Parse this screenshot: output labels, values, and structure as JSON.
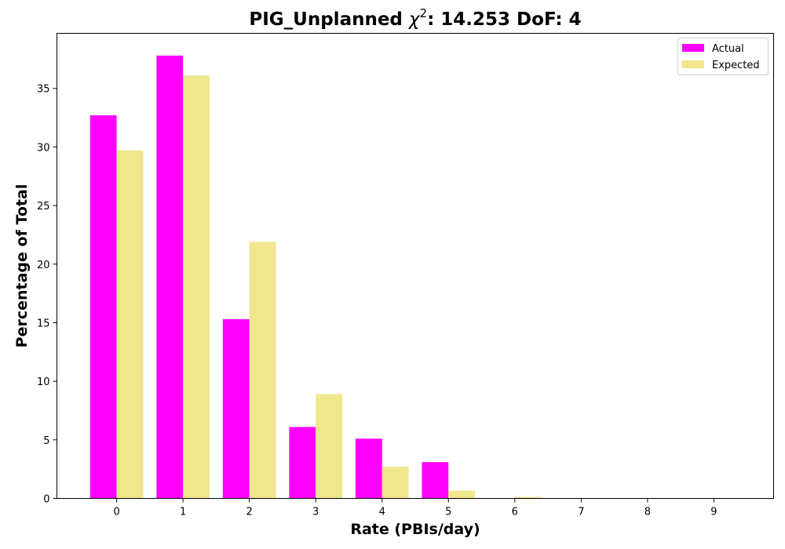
{
  "chart_data": {
    "type": "bar",
    "title": {
      "prefix": "PIG_Unplanned ",
      "symbol": "χ",
      "superscript": "2",
      "suffix": ": 14.253 DoF: 4"
    },
    "xlabel": "Rate (PBIs/day)",
    "ylabel": "Percentage of Total",
    "categories": [
      "0",
      "1",
      "2",
      "3",
      "4",
      "5",
      "6",
      "7",
      "8",
      "9"
    ],
    "series": [
      {
        "name": "Actual",
        "color": "#ff00ff",
        "values": [
          32.7,
          37.8,
          15.3,
          6.1,
          5.1,
          3.1,
          0,
          0,
          0,
          0
        ]
      },
      {
        "name": "Expected",
        "color": "#f0e68c",
        "values": [
          29.7,
          36.1,
          21.9,
          8.9,
          2.7,
          0.65,
          0.13,
          0.02,
          0,
          0
        ]
      }
    ],
    "yticks": [
      "0",
      "5",
      "10",
      "15",
      "20",
      "25",
      "30",
      "35"
    ],
    "ylim": [
      0,
      39.7
    ],
    "xlim": [
      -0.9,
      9.9
    ],
    "grid": false,
    "legend_position": "top-right"
  }
}
